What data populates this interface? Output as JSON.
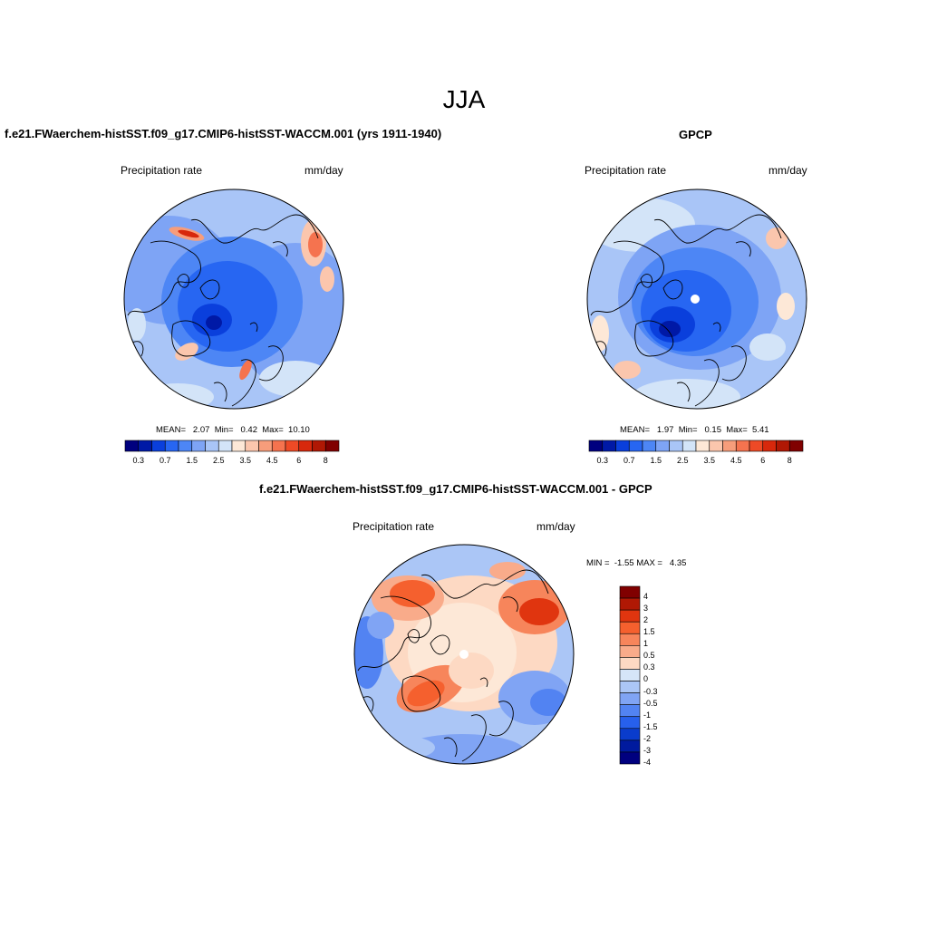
{
  "main_title": "JJA",
  "colors": {
    "abs_scale": [
      "#00007f",
      "#0019a6",
      "#0a3fdc",
      "#2766f2",
      "#4d86f5",
      "#7ea4f5",
      "#a9c5f7",
      "#d3e4f8",
      "#fde8d7",
      "#fbc6ad",
      "#f79d7b",
      "#f5734f",
      "#ee4a26",
      "#d7280c",
      "#b01804",
      "#800000"
    ],
    "diff_scale": [
      "#800000",
      "#b01804",
      "#e0350f",
      "#f5602e",
      "#f7855b",
      "#f9ab8a",
      "#fdd9c3",
      "#d5e5f8",
      "#abc6f6",
      "#80a4f4",
      "#5283f2",
      "#2760ec",
      "#0a3ccc",
      "#001a9e",
      "#00007f"
    ],
    "land": "#000000"
  },
  "panels": {
    "model": {
      "title": "f.e21.FWaerchem-histSST.f09_g17.CMIP6-histSST-WACCM.001 (yrs 1911-1940)",
      "variable": "Precipitation rate",
      "units": "mm/day",
      "stats": {
        "mean_label": "MEAN=",
        "mean": "2.07",
        "min_label": "Min=",
        "min": "0.42",
        "max_label": "Max=",
        "max": "10.10"
      }
    },
    "obs": {
      "title": "GPCP",
      "variable": "Precipitation rate",
      "units": "mm/day",
      "stats": {
        "mean_label": "MEAN=",
        "mean": "1.97",
        "min_label": "Min=",
        "min": "0.15",
        "max_label": "Max=",
        "max": "5.41"
      }
    },
    "diff": {
      "title": "f.e21.FWaerchem-histSST.f09_g17.CMIP6-histSST-WACCM.001 - GPCP",
      "variable": "Precipitation rate",
      "units": "mm/day",
      "minmax": {
        "min_label": "MIN =",
        "min": "-1.55",
        "max_label": "MAX =",
        "max": "4.35"
      }
    }
  },
  "abs_colorbar_ticks": [
    "0.3",
    "0.7",
    "1.5",
    "2.5",
    "3.5",
    "4.5",
    "6",
    "8"
  ],
  "diff_colorbar_ticks": [
    "4",
    "3",
    "2",
    "1.5",
    "1",
    "0.5",
    "0.3",
    "0",
    "-0.3",
    "-0.5",
    "-1",
    "-1.5",
    "-2",
    "-3",
    "-4"
  ]
}
